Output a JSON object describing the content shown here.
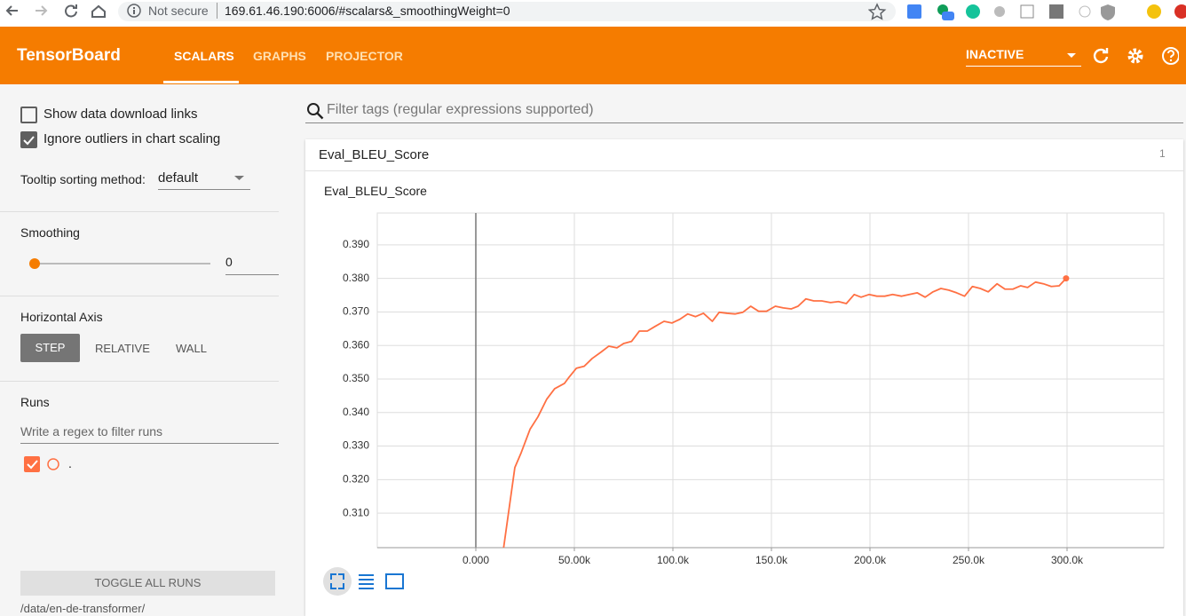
{
  "browser": {
    "security": "Not secure",
    "url": "169.61.46.190:6006/#scalars&_smoothingWeight=0"
  },
  "header": {
    "title": "TensorBoard",
    "tabs": [
      "SCALARS",
      "GRAPHS",
      "PROJECTOR"
    ],
    "status": "INACTIVE"
  },
  "sidebar": {
    "show_download_links": "Show data download links",
    "ignore_outliers": "Ignore outliers in chart scaling",
    "tooltip_label": "Tooltip sorting method:",
    "tooltip_value": "default",
    "smoothing_label": "Smoothing",
    "smoothing_value": "0",
    "horizontal_axis_label": "Horizontal Axis",
    "horizontal_axis_options": [
      "STEP",
      "RELATIVE",
      "WALL"
    ],
    "runs_label": "Runs",
    "runs_filter_placeholder": "Write a regex to filter runs",
    "toggle_all": "TOGGLE ALL RUNS",
    "logdir": "/data/en-de-transformer/"
  },
  "main": {
    "filter_placeholder": "Filter tags (regular expressions supported)",
    "card": {
      "title": "Eval_BLEU_Score",
      "count": "1"
    }
  },
  "chart_data": {
    "type": "line",
    "title": "Eval_BLEU_Score",
    "x": [
      13000,
      19800,
      23000,
      27500,
      31500,
      36000,
      40000,
      45000,
      47000,
      51000,
      55000,
      59000,
      63500,
      67500,
      71600,
      75000,
      79000,
      83000,
      87000,
      91000,
      95500,
      99500,
      103500,
      107500,
      111500,
      115500,
      120000,
      123500,
      127500,
      131500,
      135500,
      139500,
      143500,
      147500,
      152000,
      156000,
      160000,
      163500,
      167500,
      171500,
      175500,
      180000,
      184000,
      188000,
      192000,
      195500,
      199500,
      203500,
      207500,
      211500,
      216000,
      220000,
      224000,
      228000,
      232000,
      236000,
      240000,
      244000,
      248000,
      252000,
      256000,
      260000,
      264500,
      268500,
      272500,
      276500,
      280000,
      284000,
      288000,
      292000,
      296000,
      299500
    ],
    "series": [
      {
        "name": ".",
        "color": "#ff7043",
        "values": [
          0.295,
          0.3236,
          0.328,
          0.335,
          0.3387,
          0.344,
          0.3471,
          0.3487,
          0.3503,
          0.3532,
          0.3538,
          0.3561,
          0.358,
          0.3598,
          0.3593,
          0.3606,
          0.3612,
          0.3643,
          0.3643,
          0.3657,
          0.3672,
          0.3667,
          0.3678,
          0.3694,
          0.3686,
          0.3696,
          0.3672,
          0.3699,
          0.3696,
          0.3694,
          0.3699,
          0.3717,
          0.3702,
          0.3702,
          0.3717,
          0.3712,
          0.3709,
          0.3717,
          0.3739,
          0.3733,
          0.3733,
          0.3728,
          0.3731,
          0.3725,
          0.3752,
          0.3744,
          0.3752,
          0.3747,
          0.3747,
          0.3752,
          0.3747,
          0.3752,
          0.3757,
          0.3744,
          0.376,
          0.377,
          0.3765,
          0.3757,
          0.3747,
          0.3776,
          0.377,
          0.376,
          0.3784,
          0.3768,
          0.3768,
          0.3778,
          0.3773,
          0.3789,
          0.3784,
          0.3776,
          0.3778,
          0.38
        ]
      }
    ],
    "xlim": [
      -50000,
      349100
    ],
    "xticks": [
      {
        "value": 0,
        "label": "0.000"
      },
      {
        "value": 50000,
        "label": "50.00k"
      },
      {
        "value": 100000,
        "label": "100.0k"
      },
      {
        "value": 150000,
        "label": "150.0k"
      },
      {
        "value": 200000,
        "label": "200.0k"
      },
      {
        "value": 250000,
        "label": "250.0k"
      },
      {
        "value": 300000,
        "label": "300.0k"
      }
    ],
    "ylim": [
      0.2997,
      0.3995
    ],
    "yticks": [
      {
        "value": 0.31,
        "label": "0.310"
      },
      {
        "value": 0.32,
        "label": "0.320"
      },
      {
        "value": 0.33,
        "label": "0.330"
      },
      {
        "value": 0.34,
        "label": "0.340"
      },
      {
        "value": 0.35,
        "label": "0.350"
      },
      {
        "value": 0.36,
        "label": "0.360"
      },
      {
        "value": 0.37,
        "label": "0.370"
      },
      {
        "value": 0.38,
        "label": "0.380"
      },
      {
        "value": 0.39,
        "label": "0.390"
      }
    ],
    "grid": true
  }
}
